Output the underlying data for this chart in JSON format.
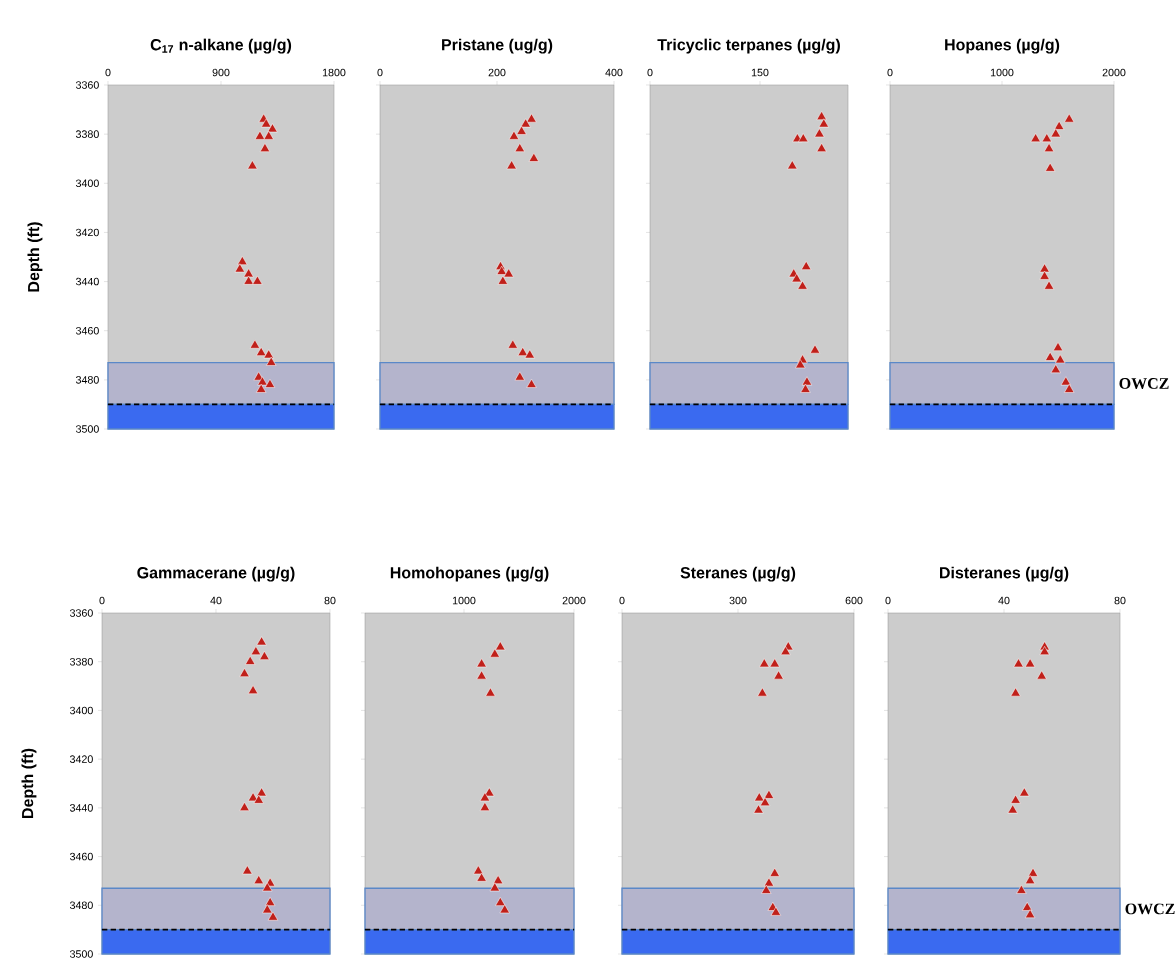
{
  "chart_data": [
    {
      "type": "scatter",
      "title": "C$_{17}$ n-alkane (µg/g)",
      "ylabel": "Depth (ft)",
      "xlim": [
        0,
        1800
      ],
      "xticks": [
        0,
        900,
        1800
      ],
      "ylim": [
        3500,
        3360
      ],
      "yticks": [
        3360,
        3380,
        3400,
        3420,
        3440,
        3460,
        3480,
        3500
      ],
      "marker": "triangle",
      "series": [
        {
          "color": "#c0201a",
          "x": [
            1240,
            1260,
            1310,
            1210,
            1280,
            1250,
            1150,
            1070,
            1050,
            1120,
            1120,
            1190,
            1170,
            1220,
            1280,
            1300,
            1200,
            1230,
            1290,
            1220
          ],
          "values": [
            3374,
            3376,
            3378,
            3381,
            3381,
            3386,
            3393,
            3432,
            3435,
            3437,
            3440,
            3440,
            3466,
            3469,
            3470,
            3473,
            3479,
            3481,
            3482,
            3484
          ]
        }
      ],
      "bands": [
        {
          "axis": "y",
          "from": 3473,
          "to": 3490,
          "color": "#b4b4cc"
        },
        {
          "axis": "y",
          "from": 3490,
          "to": 3500,
          "color": "#3a6af0"
        }
      ],
      "ref_lines": [
        {
          "axis": "y",
          "value": 3490,
          "color": "#000000",
          "line_style": "dashed"
        }
      ]
    },
    {
      "type": "scatter",
      "title": "Pristane (ug/g)",
      "xlim": [
        0,
        400
      ],
      "xticks": [
        0,
        200,
        400
      ],
      "ylim": [
        3500,
        3360
      ],
      "yticks": [
        3360,
        3380,
        3400,
        3420,
        3440,
        3460,
        3480,
        3500
      ],
      "tick_labels": "x",
      "marker": "triangle",
      "series": [
        {
          "color": "#c0201a",
          "x": [
            259,
            249,
            242,
            229,
            239,
            263,
            225,
            206,
            208,
            220,
            210,
            227,
            244,
            256,
            239,
            259
          ],
          "values": [
            3374,
            3376,
            3379,
            3381,
            3386,
            3390,
            3393,
            3434,
            3436,
            3437,
            3440,
            3466,
            3469,
            3470,
            3479,
            3482
          ]
        }
      ],
      "bands": [
        {
          "axis": "y",
          "from": 3473,
          "to": 3490,
          "color": "#b4b4cc"
        },
        {
          "axis": "y",
          "from": 3490,
          "to": 3500,
          "color": "#3a6af0"
        }
      ],
      "ref_lines": [
        {
          "axis": "y",
          "value": 3490,
          "color": "#000000",
          "line_style": "dashed"
        }
      ]
    },
    {
      "type": "scatter",
      "title": "Tricyclic terpanes (µg/g)",
      "xlim": [
        0,
        270
      ],
      "xticks": [
        0,
        150
      ],
      "ylim": [
        3500,
        3360
      ],
      "yticks": [
        3360,
        3380,
        3400,
        3420,
        3440,
        3460,
        3480,
        3500
      ],
      "tick_labels": "x",
      "marker": "triangle",
      "series": [
        {
          "color": "#c0201a",
          "x": [
            234,
            237,
            231,
            201,
            209,
            234,
            194,
            213,
            196,
            200,
            208,
            225,
            208,
            205,
            214,
            212
          ],
          "values": [
            3373,
            3376,
            3380,
            3382,
            3382,
            3386,
            3393,
            3434,
            3437,
            3439,
            3442,
            3468,
            3472,
            3474,
            3481,
            3484
          ]
        }
      ],
      "bands": [
        {
          "axis": "y",
          "from": 3473,
          "to": 3490,
          "color": "#b4b4cc"
        },
        {
          "axis": "y",
          "from": 3490,
          "to": 3500,
          "color": "#3a6af0"
        }
      ],
      "ref_lines": [
        {
          "axis": "y",
          "value": 3490,
          "color": "#000000",
          "line_style": "dashed"
        }
      ]
    },
    {
      "type": "scatter",
      "title": "Hopanes (µg/g)",
      "xlim": [
        0,
        2000
      ],
      "xticks": [
        0,
        1000,
        2000
      ],
      "ylim": [
        3500,
        3360
      ],
      "yticks": [
        3360,
        3380,
        3400,
        3420,
        3440,
        3460,
        3480,
        3500
      ],
      "tick_labels": "x",
      "marker": "triangle",
      "series": [
        {
          "color": "#c0201a",
          "x": [
            1600,
            1510,
            1480,
            1300,
            1400,
            1420,
            1430,
            1380,
            1380,
            1420,
            1500,
            1430,
            1520,
            1480,
            1570,
            1600
          ],
          "values": [
            3374,
            3377,
            3380,
            3382,
            3382,
            3386,
            3394,
            3435,
            3438,
            3442,
            3467,
            3471,
            3472,
            3476,
            3481,
            3484
          ]
        }
      ],
      "bands": [
        {
          "axis": "y",
          "from": 3473,
          "to": 3490,
          "color": "#b4b4cc",
          "label": "OWCZ"
        },
        {
          "axis": "y",
          "from": 3490,
          "to": 3500,
          "color": "#3a6af0"
        }
      ],
      "ref_lines": [
        {
          "axis": "y",
          "value": 3490,
          "color": "#000000",
          "line_style": "dashed"
        }
      ]
    },
    {
      "type": "scatter",
      "title": "Gammacerane (µg/g)",
      "ylabel": "Depth (ft)",
      "xlim": [
        0,
        80
      ],
      "xticks": [
        0,
        40,
        80
      ],
      "ylim": [
        3500,
        3360
      ],
      "yticks": [
        3360,
        3380,
        3400,
        3420,
        3440,
        3460,
        3480,
        3500
      ],
      "marker": "triangle",
      "series": [
        {
          "color": "#c0201a",
          "x": [
            56,
            54,
            57,
            52,
            50,
            53,
            56,
            53,
            55,
            50,
            51,
            55,
            59,
            58,
            59,
            58,
            60
          ],
          "values": [
            3372,
            3376,
            3378,
            3380,
            3385,
            3392,
            3434,
            3436,
            3437,
            3440,
            3466,
            3470,
            3471,
            3473,
            3479,
            3482,
            3485
          ]
        }
      ],
      "bands": [
        {
          "axis": "y",
          "from": 3473,
          "to": 3490,
          "color": "#b4b4cc"
        },
        {
          "axis": "y",
          "from": 3490,
          "to": 3500,
          "color": "#3a6af0"
        }
      ],
      "ref_lines": [
        {
          "axis": "y",
          "value": 3490,
          "color": "#000000",
          "line_style": "dashed"
        }
      ]
    },
    {
      "type": "scatter",
      "title": "Homohopanes (µg/g)",
      "xlim": [
        100,
        2000
      ],
      "xticks": [
        1000,
        2000
      ],
      "ylim": [
        3500,
        3360
      ],
      "yticks": [
        3360,
        3380,
        3400,
        3420,
        3440,
        3460,
        3480,
        3500
      ],
      "tick_labels": "x",
      "marker": "triangle",
      "series": [
        {
          "color": "#c0201a",
          "x": [
            1330,
            1280,
            1160,
            1160,
            1240,
            1230,
            1190,
            1190,
            1130,
            1160,
            1310,
            1280,
            1330,
            1370
          ],
          "values": [
            3374,
            3377,
            3381,
            3386,
            3393,
            3434,
            3436,
            3440,
            3466,
            3469,
            3470,
            3473,
            3479,
            3482
          ]
        }
      ],
      "bands": [
        {
          "axis": "y",
          "from": 3473,
          "to": 3490,
          "color": "#b4b4cc"
        },
        {
          "axis": "y",
          "from": 3490,
          "to": 3500,
          "color": "#3a6af0"
        }
      ],
      "ref_lines": [
        {
          "axis": "y",
          "value": 3490,
          "color": "#000000",
          "line_style": "dashed"
        }
      ]
    },
    {
      "type": "scatter",
      "title": "Steranes (µg/g)",
      "xlim": [
        0,
        600
      ],
      "xticks": [
        0,
        300,
        600
      ],
      "ylim": [
        3500,
        3360
      ],
      "yticks": [
        3360,
        3380,
        3400,
        3420,
        3440,
        3460,
        3480,
        3500
      ],
      "tick_labels": "x",
      "marker": "triangle",
      "series": [
        {
          "color": "#c0201a",
          "x": [
            430,
            423,
            368,
            395,
            405,
            363,
            380,
            355,
            370,
            353,
            395,
            380,
            373,
            390,
            398
          ],
          "values": [
            3374,
            3376,
            3381,
            3381,
            3386,
            3393,
            3435,
            3436,
            3438,
            3441,
            3467,
            3471,
            3474,
            3481,
            3483
          ]
        }
      ],
      "bands": [
        {
          "axis": "y",
          "from": 3473,
          "to": 3490,
          "color": "#b4b4cc"
        },
        {
          "axis": "y",
          "from": 3490,
          "to": 3500,
          "color": "#3a6af0"
        }
      ],
      "ref_lines": [
        {
          "axis": "y",
          "value": 3490,
          "color": "#000000",
          "line_style": "dashed"
        }
      ]
    },
    {
      "type": "scatter",
      "title": "Disteranes (µg/g)",
      "xlim": [
        0,
        80
      ],
      "xticks": [
        0,
        40,
        80
      ],
      "ylim": [
        3500,
        3360
      ],
      "yticks": [
        3360,
        3380,
        3400,
        3420,
        3440,
        3460,
        3480,
        3500
      ],
      "tick_labels": "x",
      "marker": "triangle",
      "series": [
        {
          "color": "#c0201a",
          "x": [
            54,
            54,
            45,
            49,
            53,
            44,
            47,
            44,
            43,
            50,
            49,
            46,
            48,
            49
          ],
          "values": [
            3374,
            3376,
            3381,
            3381,
            3386,
            3393,
            3434,
            3437,
            3441,
            3467,
            3470,
            3474,
            3481,
            3484
          ]
        }
      ],
      "bands": [
        {
          "axis": "y",
          "from": 3473,
          "to": 3490,
          "color": "#b4b4cc",
          "label": "OWCZ"
        },
        {
          "axis": "y",
          "from": 3490,
          "to": 3500,
          "color": "#3a6af0"
        }
      ],
      "ref_lines": [
        {
          "axis": "y",
          "value": 3490,
          "color": "#000000",
          "line_style": "dashed"
        }
      ]
    }
  ]
}
